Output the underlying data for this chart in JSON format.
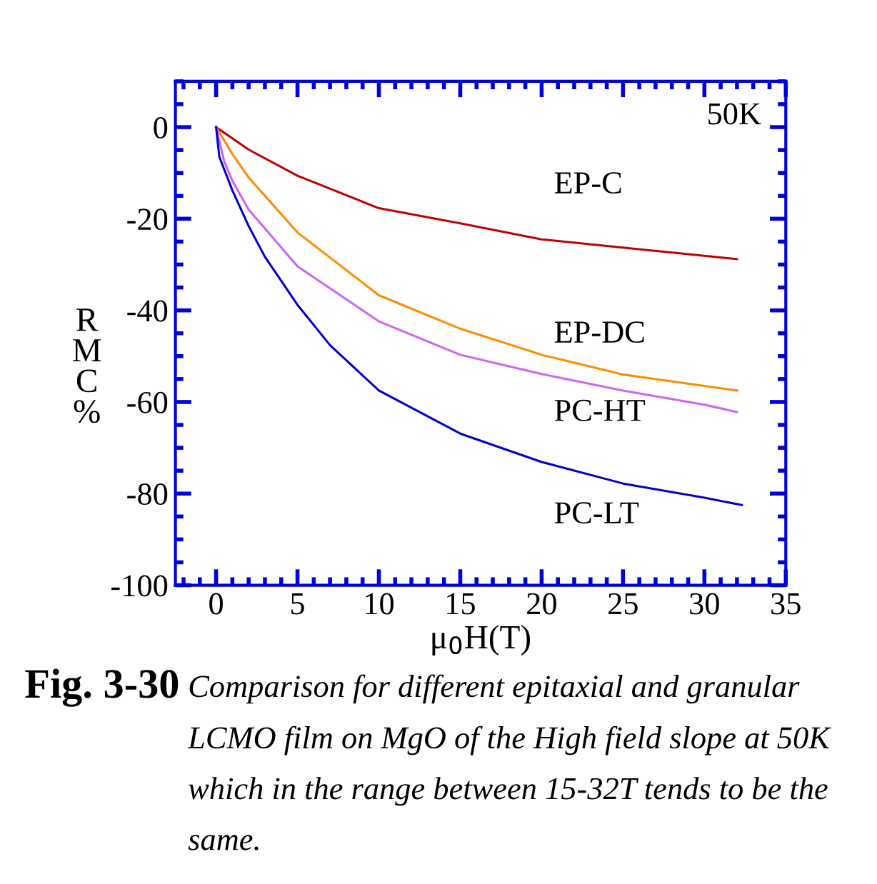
{
  "chart_data": {
    "type": "line",
    "xlabel": "μ$_{0}$H(T)",
    "ylabel": "RMC%",
    "xlim": [
      -2.5,
      35
    ],
    "ylim": [
      -100,
      10
    ],
    "xticks": [
      0,
      5,
      10,
      15,
      20,
      25,
      30,
      35
    ],
    "yticks": [
      -100,
      -80,
      -60,
      -40,
      -20,
      0
    ],
    "grid": false,
    "legend": false,
    "marker": "none",
    "line_style": "solid",
    "annotations": [
      "50K",
      "Fig. 3-30",
      "Comparison for different epitaxial and granular LCMO film on MgO of the High field slope at 50K which in the range between 15-32T tends to be the same."
    ],
    "series": [
      {
        "name": "EP-C",
        "color": "#c00000",
        "x": [
          0,
          2,
          5,
          10,
          15,
          20,
          25,
          30,
          32
        ],
        "values": [
          0,
          -4.9,
          -10.6,
          -17.7,
          -21,
          -24.5,
          -26.3,
          -28.1,
          -28.8
        ]
      },
      {
        "name": "EP-DC",
        "color": "#ff8c00",
        "x": [
          0,
          1,
          2,
          5,
          10,
          15,
          20,
          25,
          30,
          32
        ],
        "values": [
          0,
          -5.9,
          -11,
          -23,
          -36.7,
          -44,
          -49.7,
          -54,
          -56.5,
          -57.5
        ]
      },
      {
        "name": "PC-HT",
        "color": "#cc66ee",
        "x": [
          0,
          0.5,
          1,
          2,
          5,
          10,
          15,
          20,
          25,
          30,
          32
        ],
        "values": [
          0,
          -7.5,
          -11.7,
          -18,
          -30.4,
          -42.4,
          -49.7,
          -53.9,
          -57.5,
          -60.6,
          -62.2
        ]
      },
      {
        "name": "PC-LT",
        "color": "#0000cc",
        "x": [
          0,
          0.2,
          1,
          2,
          3,
          5,
          7,
          10,
          15,
          20,
          25,
          30,
          32.3
        ],
        "values": [
          0,
          -6.5,
          -13.8,
          -21.6,
          -28.3,
          -38.8,
          -47.6,
          -57.5,
          -66.9,
          -73.1,
          -77.8,
          -80.9,
          -82.5
        ]
      }
    ]
  }
}
